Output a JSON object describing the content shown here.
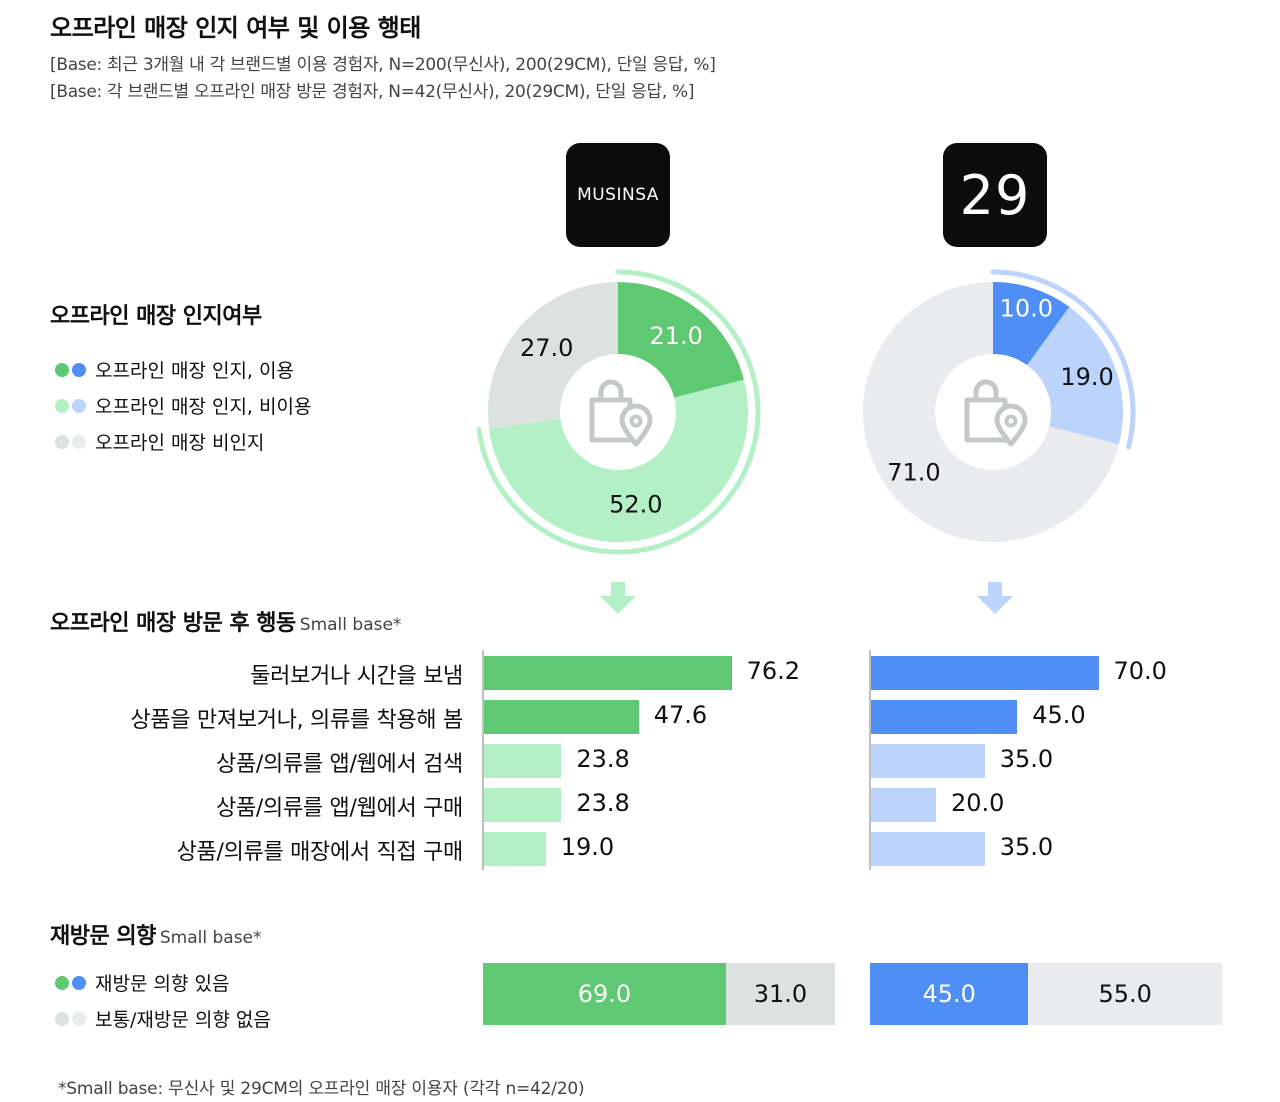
{
  "header": {
    "title": "오프라인 매장 인지 여부 및 이용 행태",
    "base_lines": [
      "[Base: 최근 3개월 내 각 브랜드별 이용 경험자, N=200(무신사), 200(29CM), 단일 응답, %]",
      "[Base: 각 브랜드별 오프라인 매장 방문 경험자, N=42(무신사), 20(29CM), 단일 응답, %]"
    ]
  },
  "brands": {
    "musinsa_logo": "MUSINSA",
    "cm29_logo": "29"
  },
  "awareness": {
    "title": "오프라인 매장 인지여부",
    "legend": [
      "오프라인 매장 인지, 이용",
      "오프라인 매장 인지, 비이용",
      "오프라인 매장 비인지"
    ]
  },
  "behavior": {
    "title": "오프라인 매장 방문 후 행동",
    "note": "Small base*",
    "labels": [
      "둘러보거나 시간을 보냄",
      "상품을 만져보거나, 의류를 착용해 봄",
      "상품/의류를 앱/웹에서 검색",
      "상품/의류를 앱/웹에서 구매",
      "상품/의류를 매장에서 직접 구매"
    ]
  },
  "revisit": {
    "title": "재방문 의향",
    "note": "Small base*",
    "legend": [
      "재방문 의향 있음",
      "보통/재방문 의향 없음"
    ]
  },
  "colors": {
    "green_dark": "#5ec872",
    "green_light": "#b3f0c6",
    "green_gray": "#dbe2e0",
    "blue_dark": "#4f8ef5",
    "blue_light": "#bcd3fb",
    "blue_gray": "#e9ebef",
    "icon": "icon-shopping-bag-with-location-pin"
  },
  "chart_data": [
    {
      "type": "pie",
      "title": "",
      "brand": "MUSINSA",
      "labels": [
        "오프라인 매장 인지, 이용",
        "오프라인 매장 인지, 비이용",
        "오프라인 매장 비인지"
      ],
      "values": [
        21.0,
        52.0,
        27.0
      ],
      "display": [
        "21.0",
        "52.0",
        "27.0"
      ],
      "colors": [
        "#5ec872",
        "#b3f0c6",
        "#dbe2e0"
      ]
    },
    {
      "type": "pie",
      "title": "",
      "brand": "29CM",
      "labels": [
        "오프라인 매장 인지, 이용",
        "오프라인 매장 인지, 비이용",
        "오프라인 매장 비인지"
      ],
      "values": [
        10.0,
        19.0,
        71.0
      ],
      "display": [
        "10.0",
        "19.0",
        "71.0"
      ],
      "colors": [
        "#4f8ef5",
        "#bcd3fb",
        "#e9ebef"
      ]
    },
    {
      "type": "bar",
      "title": "",
      "brand": "MUSINSA",
      "orientation": "horizontal",
      "categories": [
        "둘러보거나 시간을 보냄",
        "상품을 만져보거나, 의류를 착용해 봄",
        "상품/의류를 앱/웹에서 검색",
        "상품/의류를 앱/웹에서 구매",
        "상품/의류를 매장에서 직접 구매"
      ],
      "values": [
        76.2,
        47.6,
        23.8,
        23.8,
        19.0
      ],
      "display": [
        "76.2",
        "47.6",
        "23.8",
        "23.8",
        "19.0"
      ],
      "xlim": [
        0,
        100
      ]
    },
    {
      "type": "bar",
      "title": "",
      "brand": "29CM",
      "orientation": "horizontal",
      "categories": [
        "둘러보거나 시간을 보냄",
        "상품을 만져보거나, 의류를 착용해 봄",
        "상품/의류를 앱/웹에서 검색",
        "상품/의류를 앱/웹에서 구매",
        "상품/의류를 매장에서 직접 구매"
      ],
      "values": [
        70.0,
        45.0,
        35.0,
        20.0,
        35.0
      ],
      "display": [
        "70.0",
        "45.0",
        "35.0",
        "20.0",
        "35.0"
      ],
      "xlim": [
        0,
        100
      ]
    },
    {
      "type": "bar",
      "stacked": true,
      "title": "",
      "brand": "MUSINSA",
      "series": [
        {
          "name": "재방문 의향 있음",
          "values": [
            69.0
          ]
        },
        {
          "name": "보통/재방문 의향 없음",
          "values": [
            31.0
          ]
        }
      ],
      "display": [
        "69.0",
        "31.0"
      ]
    },
    {
      "type": "bar",
      "stacked": true,
      "title": "",
      "brand": "29CM",
      "series": [
        {
          "name": "재방문 의향 있음",
          "values": [
            45.0
          ]
        },
        {
          "name": "보통/재방문 의향 없음",
          "values": [
            55.0
          ]
        }
      ],
      "display": [
        "45.0",
        "55.0"
      ]
    }
  ],
  "footnote": "*Small base: 무신사 및 29CM의 오프라인 매장 이용자 (각각 n=42/20)"
}
